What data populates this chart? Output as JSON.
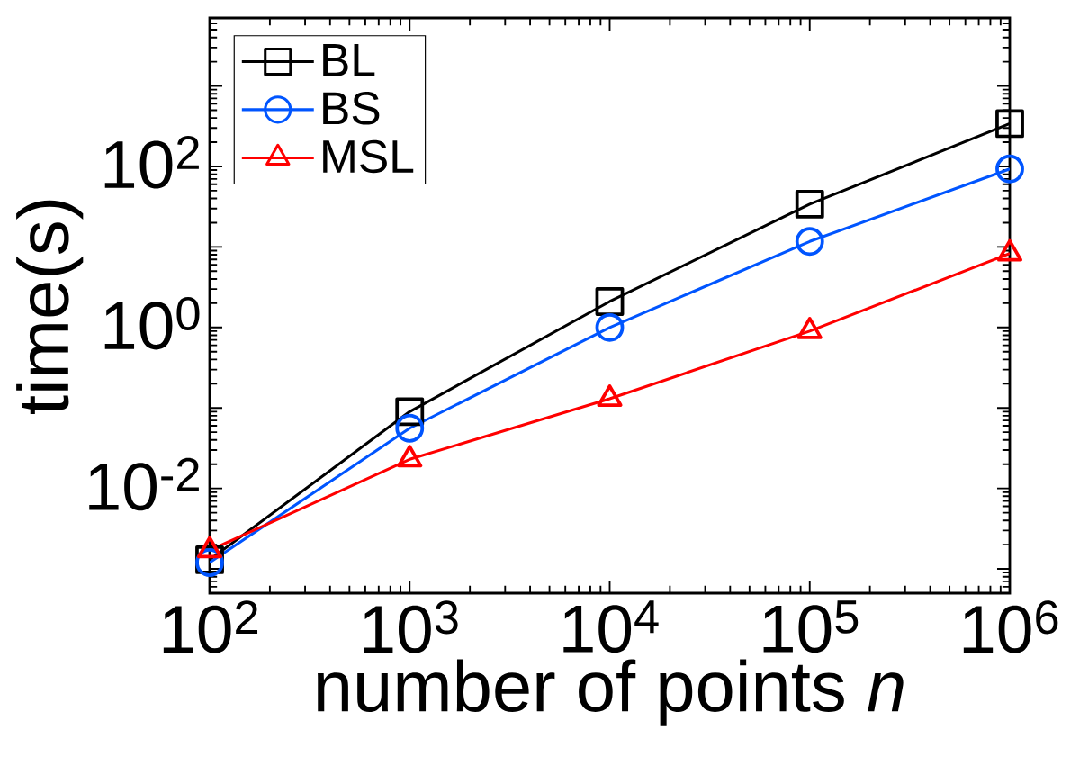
{
  "chart_data": {
    "type": "line",
    "xlabel": "number of points *n*",
    "ylabel": "time(s)",
    "log": "xy",
    "legend": "top left",
    "line_style": "solid",
    "grid": false,
    "x": [
      100,
      1000,
      10000,
      100000,
      1000000
    ],
    "xlim": [
      100,
      1000000
    ],
    "ylim": [
      0.0005,
      7000
    ],
    "xticks": [
      {
        "value": 100,
        "label": "10$^{2}$"
      },
      {
        "value": 1000,
        "label": "10$^{3}$"
      },
      {
        "value": 10000,
        "label": "10$^{4}$"
      },
      {
        "value": 100000,
        "label": "10$^{5}$"
      },
      {
        "value": 1000000,
        "label": "10$^{6}$"
      }
    ],
    "yticks": [
      {
        "value": 0.001,
        "label": null
      },
      {
        "value": 0.01,
        "label": "10$^{-2}$"
      },
      {
        "value": 0.1,
        "label": null
      },
      {
        "value": 1,
        "label": "10$^{0}$"
      },
      {
        "value": 10,
        "label": null
      },
      {
        "value": 100,
        "label": "10$^{2}$"
      },
      {
        "value": 1000,
        "label": null
      }
    ],
    "series": [
      {
        "name": "BL",
        "color": "#000000",
        "marker": "square",
        "values": [
          0.0013,
          0.09,
          2.1,
          34,
          340
        ]
      },
      {
        "name": "BS",
        "color": "#0055ff",
        "marker": "circle",
        "values": [
          0.0012,
          0.056,
          1.0,
          11.7,
          93
        ]
      },
      {
        "name": "MSL",
        "color": "#ff0000",
        "marker": "triangle",
        "values": [
          0.0017,
          0.023,
          0.13,
          0.9,
          8.3
        ]
      }
    ]
  }
}
